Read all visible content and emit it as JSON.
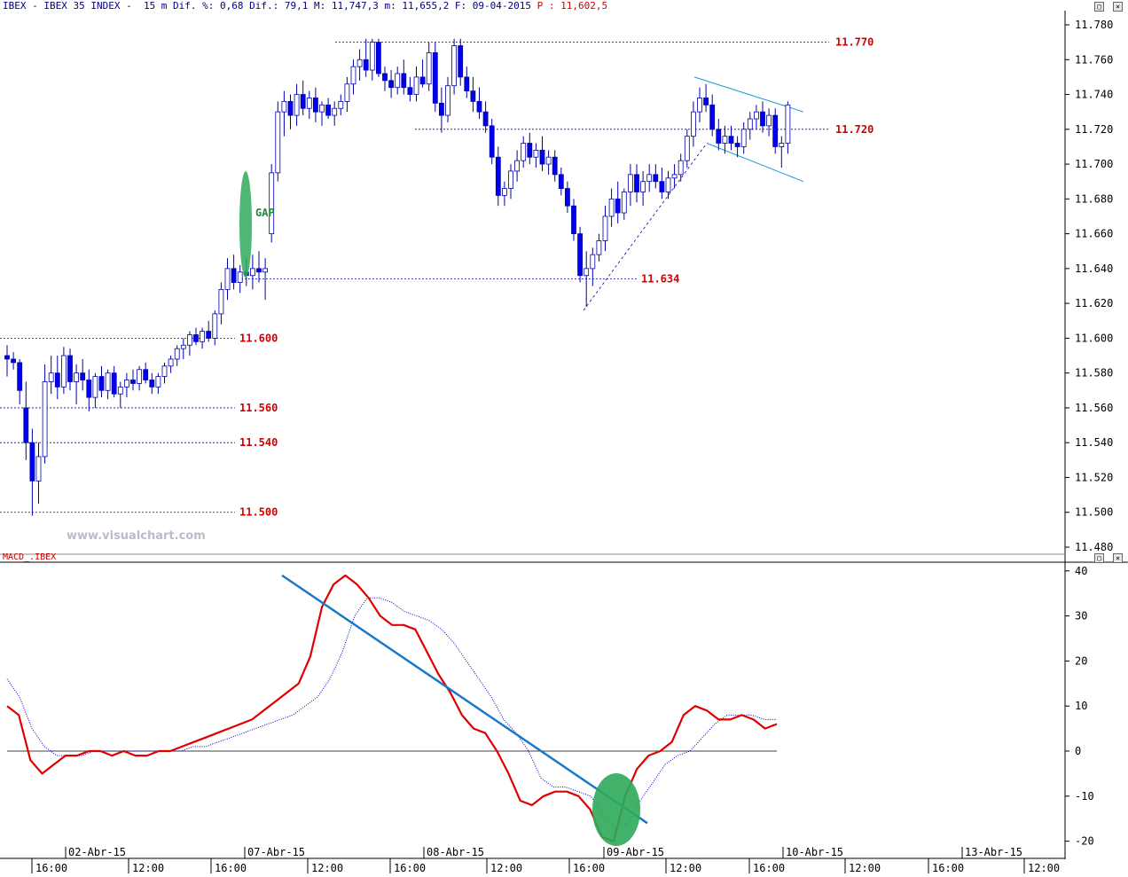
{
  "header": {
    "text": "IBEX - IBEX 35 INDEX -  15 m Dif. %: 0,68 Dif.: 79,1 M: 11,747,3 m: 11,655,2 F: 09-04-2015",
    "price": "P : 11,602,5"
  },
  "watermark": "www.visualchart.com",
  "macd_title": "MACD_.IBEX",
  "annotations": {
    "gap": "GAP",
    "levels": [
      "11.770",
      "11.720",
      "11.634",
      "11.600",
      "11.560",
      "11.540",
      "11.500"
    ]
  },
  "colors": {
    "bull_candle": "#ffffff",
    "bear_candle": "#0000ee",
    "candle_edge": "#0000aa",
    "level_line": "#0000aa",
    "level_label": "#d00000",
    "channel": "#1e9ad6",
    "macd": "#e00000",
    "signal": "#0000cc",
    "trendline": "#1a78c8",
    "highlight": "#2eaa5a"
  },
  "chart_data": [
    {
      "type": "candlestick",
      "title": "IBEX 35 INDEX 15 m",
      "y_ticks": [
        "11.780",
        "11.760",
        "11.740",
        "11.720",
        "11.700",
        "11.680",
        "11.660",
        "11.640",
        "11.620",
        "11.600",
        "11.580",
        "11.560",
        "11.540",
        "11.520",
        "11.500",
        "11.480"
      ],
      "ylim": [
        11480,
        11780
      ],
      "x_date_labels": [
        "02-Abr-15",
        "07-Abr-15",
        "08-Abr-15",
        "09-Abr-15",
        "10-Abr-15",
        "13-Abr-15"
      ],
      "x_time_labels": [
        "16:00",
        "12:00",
        "16:00",
        "12:00",
        "16:00",
        "12:00",
        "16:00",
        "12:00",
        "16:00",
        "12:00",
        "16:00",
        "12:00"
      ],
      "horizontal_levels": [
        11770,
        11720,
        11634,
        11600,
        11560,
        11540,
        11500
      ],
      "ohlc": [
        [
          11590,
          11596,
          11578,
          11588
        ],
        [
          11588,
          11592,
          11582,
          11586
        ],
        [
          11586,
          11588,
          11562,
          11570
        ],
        [
          11560,
          11575,
          11530,
          11540
        ],
        [
          11540,
          11548,
          11498,
          11518
        ],
        [
          11518,
          11540,
          11505,
          11532
        ],
        [
          11532,
          11585,
          11528,
          11575
        ],
        [
          11575,
          11590,
          11568,
          11580
        ],
        [
          11580,
          11590,
          11565,
          11572
        ],
        [
          11572,
          11595,
          11568,
          11590
        ],
        [
          11590,
          11594,
          11570,
          11575
        ],
        [
          11575,
          11585,
          11562,
          11580
        ],
        [
          11580,
          11588,
          11570,
          11576
        ],
        [
          11576,
          11582,
          11558,
          11566
        ],
        [
          11566,
          11580,
          11560,
          11578
        ],
        [
          11578,
          11584,
          11566,
          11570
        ],
        [
          11570,
          11582,
          11565,
          11580
        ],
        [
          11580,
          11584,
          11566,
          11568
        ],
        [
          11568,
          11575,
          11560,
          11572
        ],
        [
          11572,
          11580,
          11566,
          11576
        ],
        [
          11576,
          11582,
          11570,
          11574
        ],
        [
          11574,
          11584,
          11570,
          11582
        ],
        [
          11582,
          11586,
          11574,
          11576
        ],
        [
          11576,
          11580,
          11568,
          11572
        ],
        [
          11572,
          11580,
          11568,
          11578
        ],
        [
          11578,
          11586,
          11574,
          11584
        ],
        [
          11584,
          11590,
          11580,
          11588
        ],
        [
          11588,
          11596,
          11584,
          11594
        ],
        [
          11594,
          11600,
          11588,
          11596
        ],
        [
          11596,
          11604,
          11590,
          11602
        ],
        [
          11602,
          11606,
          11596,
          11598
        ],
        [
          11598,
          11606,
          11594,
          11604
        ],
        [
          11604,
          11610,
          11598,
          11600
        ],
        [
          11600,
          11616,
          11596,
          11614
        ],
        [
          11614,
          11632,
          11608,
          11628
        ],
        [
          11628,
          11646,
          11622,
          11640
        ],
        [
          11640,
          11648,
          11628,
          11632
        ],
        [
          11632,
          11642,
          11626,
          11638
        ],
        [
          11638,
          11646,
          11630,
          11636
        ],
        [
          11636,
          11648,
          11628,
          11640
        ],
        [
          11640,
          11650,
          11632,
          11638
        ],
        [
          11638,
          11646,
          11622,
          11640
        ],
        [
          11660,
          11700,
          11655,
          11695
        ],
        [
          11695,
          11736,
          11690,
          11730
        ],
        [
          11730,
          11742,
          11716,
          11736
        ],
        [
          11736,
          11740,
          11720,
          11728
        ],
        [
          11728,
          11746,
          11722,
          11740
        ],
        [
          11740,
          11748,
          11728,
          11732
        ],
        [
          11732,
          11742,
          11726,
          11738
        ],
        [
          11738,
          11744,
          11724,
          11730
        ],
        [
          11730,
          11736,
          11722,
          11734
        ],
        [
          11734,
          11738,
          11726,
          11728
        ],
        [
          11728,
          11736,
          11722,
          11732
        ],
        [
          11732,
          11740,
          11728,
          11736
        ],
        [
          11736,
          11750,
          11730,
          11746
        ],
        [
          11746,
          11760,
          11740,
          11756
        ],
        [
          11756,
          11766,
          11748,
          11760
        ],
        [
          11760,
          11772,
          11750,
          11754
        ],
        [
          11754,
          11772,
          11748,
          11770
        ],
        [
          11770,
          11772,
          11750,
          11752
        ],
        [
          11752,
          11756,
          11742,
          11748
        ],
        [
          11748,
          11754,
          11738,
          11744
        ],
        [
          11744,
          11756,
          11740,
          11752
        ],
        [
          11752,
          11760,
          11740,
          11744
        ],
        [
          11744,
          11750,
          11736,
          11740
        ],
        [
          11740,
          11756,
          11736,
          11750
        ],
        [
          11750,
          11760,
          11744,
          11746
        ],
        [
          11746,
          11770,
          11742,
          11764
        ],
        [
          11764,
          11770,
          11730,
          11735
        ],
        [
          11735,
          11744,
          11718,
          11728
        ],
        [
          11728,
          11750,
          11724,
          11745
        ],
        [
          11745,
          11772,
          11740,
          11768
        ],
        [
          11768,
          11772,
          11745,
          11750
        ],
        [
          11750,
          11756,
          11738,
          11742
        ],
        [
          11742,
          11750,
          11730,
          11736
        ],
        [
          11736,
          11744,
          11726,
          11730
        ],
        [
          11730,
          11736,
          11718,
          11722
        ],
        [
          11722,
          11726,
          11700,
          11704
        ],
        [
          11704,
          11710,
          11676,
          11682
        ],
        [
          11682,
          11690,
          11676,
          11686
        ],
        [
          11686,
          11700,
          11680,
          11696
        ],
        [
          11696,
          11708,
          11690,
          11702
        ],
        [
          11702,
          11716,
          11698,
          11712
        ],
        [
          11712,
          11718,
          11700,
          11704
        ],
        [
          11704,
          11712,
          11698,
          11708
        ],
        [
          11708,
          11716,
          11696,
          11700
        ],
        [
          11700,
          11708,
          11694,
          11704
        ],
        [
          11704,
          11708,
          11690,
          11694
        ],
        [
          11694,
          11698,
          11682,
          11686
        ],
        [
          11686,
          11690,
          11672,
          11676
        ],
        [
          11676,
          11680,
          11656,
          11660
        ],
        [
          11660,
          11664,
          11632,
          11636
        ],
        [
          11636,
          11650,
          11618,
          11640
        ],
        [
          11640,
          11652,
          11630,
          11648
        ],
        [
          11648,
          11660,
          11644,
          11656
        ],
        [
          11656,
          11676,
          11650,
          11670
        ],
        [
          11670,
          11686,
          11664,
          11680
        ],
        [
          11680,
          11690,
          11666,
          11672
        ],
        [
          11672,
          11686,
          11668,
          11684
        ],
        [
          11684,
          11700,
          11676,
          11694
        ],
        [
          11694,
          11700,
          11678,
          11684
        ],
        [
          11684,
          11696,
          11676,
          11690
        ],
        [
          11690,
          11700,
          11684,
          11694
        ],
        [
          11694,
          11700,
          11686,
          11690
        ],
        [
          11690,
          11698,
          11680,
          11684
        ],
        [
          11684,
          11696,
          11680,
          11692
        ],
        [
          11692,
          11700,
          11686,
          11694
        ],
        [
          11694,
          11706,
          11690,
          11702
        ],
        [
          11702,
          11720,
          11698,
          11716
        ],
        [
          11716,
          11736,
          11710,
          11730
        ],
        [
          11730,
          11744,
          11724,
          11738
        ],
        [
          11738,
          11746,
          11730,
          11734
        ],
        [
          11734,
          11740,
          11716,
          11720
        ],
        [
          11720,
          11726,
          11708,
          11712
        ],
        [
          11712,
          11722,
          11706,
          11716
        ],
        [
          11716,
          11722,
          11708,
          11712
        ],
        [
          11712,
          11716,
          11704,
          11710
        ],
        [
          11710,
          11724,
          11706,
          11720
        ],
        [
          11720,
          11730,
          11714,
          11726
        ],
        [
          11726,
          11734,
          11720,
          11730
        ],
        [
          11730,
          11736,
          11718,
          11722
        ],
        [
          11722,
          11732,
          11716,
          11728
        ],
        [
          11728,
          11732,
          11706,
          11710
        ],
        [
          11710,
          11716,
          11698,
          11712
        ],
        [
          11712,
          11736,
          11706,
          11734
        ]
      ]
    },
    {
      "type": "line",
      "title": "MACD_.IBEX",
      "y_ticks": [
        "40",
        "30",
        "20",
        "10",
        "0",
        "-10",
        "-20"
      ],
      "ylim": [
        -22,
        40
      ],
      "series": [
        {
          "name": "",
          "values": [
            10,
            8,
            -2,
            -5,
            -3,
            -1,
            -1,
            0,
            0,
            -1,
            0,
            -1,
            -1,
            0,
            0,
            1,
            2,
            3,
            4,
            5,
            6,
            7,
            9,
            11,
            13,
            15,
            21,
            32,
            37,
            39,
            37,
            34,
            30,
            28,
            28,
            27,
            22,
            17,
            13,
            8,
            5,
            4,
            0,
            -5,
            -11,
            -12,
            -10,
            -9,
            -9,
            -10,
            -13,
            -19,
            -20,
            -10,
            -4,
            -1,
            0,
            2,
            8,
            10,
            9,
            7,
            7,
            8,
            7,
            5,
            6
          ]
        },
        {
          "name": "",
          "values": [
            16,
            12,
            5,
            1,
            -1,
            -1,
            -1,
            0,
            0,
            0,
            0,
            0,
            0,
            0,
            0,
            1,
            1,
            2,
            3,
            4,
            5,
            6,
            7,
            8,
            10,
            12,
            16,
            22,
            30,
            34,
            34,
            33,
            31,
            30,
            29,
            27,
            24,
            20,
            16,
            12,
            7,
            4,
            0,
            -6,
            -8,
            -8,
            -9,
            -10,
            -14,
            -17,
            -16,
            -11,
            -7,
            -3,
            -1,
            0,
            3,
            6,
            8,
            8,
            8,
            7,
            7
          ]
        }
      ]
    }
  ]
}
